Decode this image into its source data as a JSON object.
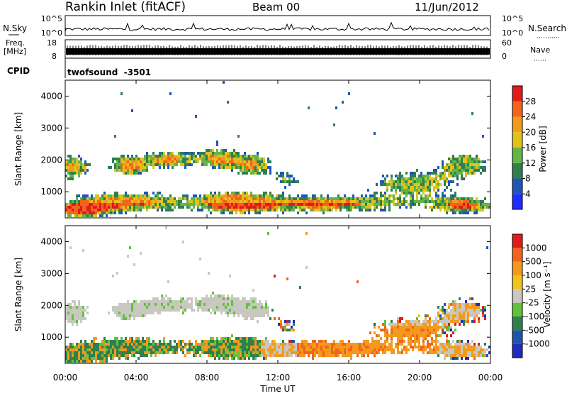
{
  "header": {
    "station": "Rankin Inlet (fitACF)",
    "beam": "Beam 00",
    "date": "11/Jun/2012"
  },
  "panels": {
    "nsky_label": "N.Sky",
    "nsearch_label": "N.Search",
    "nsky_ticks": [
      "10^5",
      "10^0"
    ],
    "nsearch_ticks": [
      "10^5",
      "10^0"
    ],
    "freq_label_line1": "Freq.",
    "freq_label_line2": "[MHz]",
    "freq_ticks": [
      "18",
      "8"
    ],
    "nave_label": "Nave",
    "nave_ticks": [
      "60",
      "0"
    ],
    "cpid_label": "CPID",
    "cpid_value": "twofsound  -3501"
  },
  "chart_data": [
    {
      "type": "heatmap",
      "name": "power",
      "xlabel": "",
      "ylabel": "Slant Range [km]",
      "yticks": [
        "1000",
        "2000",
        "3000",
        "4000"
      ],
      "ylim": [
        180,
        4500
      ],
      "xlim_hours": [
        0,
        24
      ],
      "colorbar": {
        "label": "Power [dB]",
        "ticks": [
          "4",
          "8",
          "12",
          "16",
          "20",
          "24",
          "28"
        ],
        "colors": [
          "#1f2bff",
          "#1f55b8",
          "#2f7f4f",
          "#62b546",
          "#e1c21a",
          "#f39a1c",
          "#f2641c",
          "#e11a1a"
        ]
      }
    },
    {
      "type": "heatmap",
      "name": "velocity",
      "xlabel": "Time UT",
      "ylabel": "Slant Range [km]",
      "yticks": [
        "1000",
        "2000",
        "3000",
        "4000"
      ],
      "xticks": [
        "00:00",
        "04:00",
        "08:00",
        "12:00",
        "16:00",
        "20:00",
        "00:00"
      ],
      "ylim": [
        180,
        4500
      ],
      "xlim_hours": [
        0,
        24
      ],
      "colorbar": {
        "label": "Velocity [m s⁻¹]",
        "ticks": [
          "1000",
          "500",
          "100",
          "25",
          "-25",
          "-100",
          "-500",
          "-1000"
        ],
        "colors": [
          "#1f2bc0",
          "#1f55a8",
          "#2f7f4f",
          "#62c23a",
          "#c8c8c0",
          "#f3c21c",
          "#f39a1c",
          "#f2641c",
          "#e11a1a"
        ]
      }
    }
  ]
}
